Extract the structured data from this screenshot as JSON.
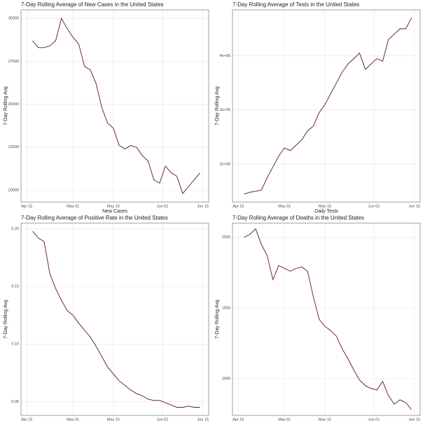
{
  "chart_data": [
    {
      "type": "line",
      "title": "7-Day Rolling Average of New Cases in the United States",
      "ylabel": "7-Day Rolling Avg",
      "xlabel": "New Cases",
      "x": [
        "Apr 17",
        "Apr 19",
        "Apr 21",
        "Apr 23",
        "Apr 25",
        "Apr 27",
        "Apr 29",
        "May 01",
        "May 03",
        "May 05",
        "May 07",
        "May 09",
        "May 11",
        "May 13",
        "May 15",
        "May 17",
        "May 19",
        "May 21",
        "May 23",
        "May 25",
        "May 27",
        "May 29",
        "May 31",
        "Jun 02",
        "Jun 04",
        "Jun 06",
        "Jun 08",
        "Jun 10",
        "Jun 12",
        "Jun 14"
      ],
      "values": [
        28700,
        28300,
        28300,
        28400,
        28700,
        30000,
        29400,
        28900,
        28500,
        27200,
        27000,
        26200,
        24800,
        23900,
        23600,
        22600,
        22400,
        22600,
        22500,
        22000,
        21700,
        20600,
        20400,
        21400,
        21000,
        20800,
        19800,
        20200,
        20600,
        21000
      ],
      "color": "#5a1620",
      "xlim": [
        "Apr 13",
        "Jun 17"
      ],
      "xticks": [
        "Apr 15",
        "May 01",
        "May 15",
        "Jun 01",
        "Jun 15"
      ],
      "ylim": [
        19300,
        30500
      ],
      "yticks": [
        20000,
        22500,
        25000,
        27500,
        30000
      ],
      "grid": true
    },
    {
      "type": "line",
      "title": "7-Day Rolling Average of Tests in the United States",
      "ylabel": "7-Day Rolling Avg",
      "xlabel": "Daily Tests",
      "x": [
        "Apr 17",
        "Apr 19",
        "Apr 21",
        "Apr 23",
        "Apr 25",
        "Apr 27",
        "Apr 29",
        "May 01",
        "May 03",
        "May 05",
        "May 07",
        "May 09",
        "May 11",
        "May 13",
        "May 15",
        "May 17",
        "May 19",
        "May 21",
        "May 23",
        "May 25",
        "May 27",
        "May 29",
        "May 31",
        "Jun 02",
        "Jun 04",
        "Jun 06",
        "Jun 08",
        "Jun 10",
        "Jun 12",
        "Jun 14"
      ],
      "values": [
        145000,
        148000,
        150000,
        152000,
        175000,
        195000,
        215000,
        230000,
        225000,
        235000,
        245000,
        262000,
        270000,
        295000,
        310000,
        330000,
        350000,
        370000,
        385000,
        395000,
        405000,
        375000,
        385000,
        395000,
        390000,
        430000,
        440000,
        450000,
        450000,
        470000
      ],
      "color": "#5a1620",
      "xlim": [
        "Apr 13",
        "Jun 17"
      ],
      "xticks": [
        "Apr 15",
        "May 01",
        "May 15",
        "Jun 01",
        "Jun 15"
      ],
      "ylim": [
        130000,
        485000
      ],
      "yticks": [
        {
          "value": 200000,
          "label": "2e+05"
        },
        {
          "value": 300000,
          "label": "3e+05"
        },
        {
          "value": 400000,
          "label": "4e+05"
        }
      ],
      "grid": true
    },
    {
      "type": "line",
      "title": "7-Day Rolling Average of Positive Rate in the United States",
      "ylabel": "7-Day Rolling Avg",
      "x": [
        "Apr 17",
        "Apr 19",
        "Apr 21",
        "Apr 23",
        "Apr 25",
        "Apr 27",
        "Apr 29",
        "May 01",
        "May 03",
        "May 05",
        "May 07",
        "May 09",
        "May 11",
        "May 13",
        "May 15",
        "May 17",
        "May 19",
        "May 21",
        "May 23",
        "May 25",
        "May 27",
        "May 29",
        "May 31",
        "Jun 02",
        "Jun 04",
        "Jun 06",
        "Jun 08",
        "Jun 10",
        "Jun 12",
        "Jun 14"
      ],
      "values": [
        0.198,
        0.192,
        0.189,
        0.161,
        0.148,
        0.138,
        0.129,
        0.125,
        0.118,
        0.112,
        0.106,
        0.098,
        0.089,
        0.08,
        0.074,
        0.068,
        0.064,
        0.06,
        0.057,
        0.055,
        0.052,
        0.051,
        0.051,
        0.049,
        0.047,
        0.045,
        0.045,
        0.046,
        0.045,
        0.045
      ],
      "color": "#5a1620",
      "xlim": [
        "Apr 13",
        "Jun 17"
      ],
      "xticks": [
        "Apr 15",
        "May 01",
        "May 15",
        "Jun 01",
        "Jun 15"
      ],
      "ylim": [
        0.038,
        0.205
      ],
      "yticks": [
        0.05,
        {
          "value": 0.1,
          "label": "0.10"
        },
        0.15,
        {
          "value": 0.2,
          "label": "0.20"
        }
      ],
      "grid": true
    },
    {
      "type": "line",
      "title": "7-Day Rolling Average of Deaths in the United States",
      "ylabel": "7-Day Rolling Avg",
      "x": [
        "Apr 17",
        "Apr 19",
        "Apr 21",
        "Apr 23",
        "Apr 25",
        "Apr 27",
        "Apr 29",
        "May 01",
        "May 03",
        "May 05",
        "May 07",
        "May 09",
        "May 11",
        "May 13",
        "May 15",
        "May 17",
        "May 19",
        "May 21",
        "May 23",
        "May 25",
        "May 27",
        "May 29",
        "May 31",
        "Jun 02",
        "Jun 04",
        "Jun 06",
        "Jun 08",
        "Jun 10",
        "Jun 12",
        "Jun 14"
      ],
      "values": [
        2000,
        2020,
        2060,
        1950,
        1870,
        1700,
        1800,
        1780,
        1760,
        1780,
        1790,
        1760,
        1580,
        1420,
        1370,
        1340,
        1300,
        1210,
        1140,
        1060,
        990,
        950,
        930,
        920,
        980,
        880,
        820,
        850,
        830,
        780
      ],
      "color": "#5a1620",
      "xlim": [
        "Apr 13",
        "Jun 17"
      ],
      "xticks": [
        "Apr 15",
        "May 01",
        "May 15",
        "Jun 01",
        "Jun 15"
      ],
      "ylim": [
        740,
        2100
      ],
      "yticks": [
        1000,
        1500,
        2000
      ],
      "grid": true
    }
  ]
}
